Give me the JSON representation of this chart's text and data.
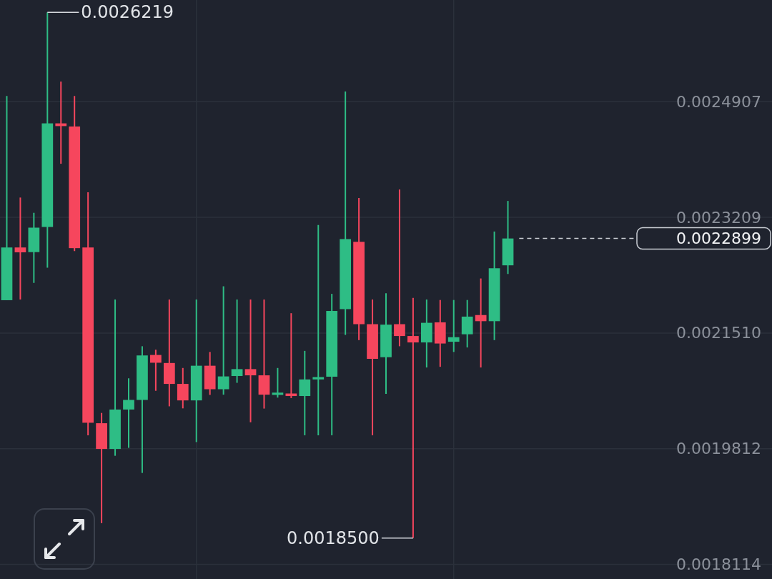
{
  "chart_data": {
    "type": "candlestick",
    "categories": [
      null,
      null,
      null,
      null,
      null,
      null,
      null,
      null,
      null,
      null,
      null,
      null,
      null,
      null,
      null,
      null,
      null,
      null,
      null,
      null,
      null,
      null,
      null,
      null,
      null,
      null,
      null,
      null,
      null,
      null,
      null,
      null,
      null,
      null,
      null,
      null,
      null,
      null,
      null,
      null,
      null,
      null,
      null,
      null,
      null,
      null,
      null,
      null,
      null,
      null,
      null,
      null,
      null,
      null,
      null,
      null,
      null
    ],
    "ohlc": [
      [
        0.0021993,
        0.0024991,
        0.0021993,
        0.0022767
      ],
      [
        0.0022767,
        0.00235,
        0.0022003,
        0.0022696
      ],
      [
        0.0022699,
        0.0023276,
        0.0022247,
        0.0023058
      ],
      [
        0.0023068,
        0.0026219,
        0.002247,
        0.0024589
      ],
      [
        0.0024589,
        0.0025202,
        0.0023996,
        0.0024549
      ],
      [
        0.0024543,
        0.0024991,
        0.0022714,
        0.0022757
      ],
      [
        0.0022767,
        0.0023578,
        0.002001,
        0.0020194
      ],
      [
        0.0020187,
        0.0020338,
        0.001872,
        0.0019809
      ],
      [
        0.0019809,
        0.0022003,
        0.0019709,
        0.0020388
      ],
      [
        0.0020388,
        0.0020847,
        0.0019825,
        0.0020529
      ],
      [
        0.0020529,
        0.0021317,
        0.0019457,
        0.0021182
      ],
      [
        0.0021189,
        0.0021266,
        0.0020663,
        0.0021075
      ],
      [
        0.0021071,
        0.0022003,
        0.0020435,
        0.0020764
      ],
      [
        0.0020764,
        0.0020998,
        0.0020405,
        0.0020522
      ],
      [
        0.0020522,
        0.0022003,
        0.001991,
        0.0021031
      ],
      [
        0.0021031,
        0.0021233,
        0.0020603,
        0.0020686
      ],
      [
        0.0020686,
        0.0022197,
        0.0020606,
        0.0020874
      ],
      [
        0.002088,
        0.0022003,
        0.002078,
        0.0020981
      ],
      [
        0.0020981,
        0.0022003,
        0.0020201,
        0.002089
      ],
      [
        0.002089,
        0.0022003,
        0.0020402,
        0.0020606
      ],
      [
        0.0020603,
        0.0020998,
        0.0020563,
        0.0020636
      ],
      [
        0.0020623,
        0.0021802,
        0.0020556,
        0.0020586
      ],
      [
        0.0020586,
        0.0021249,
        0.002001,
        0.002083
      ],
      [
        0.002083,
        0.0023098,
        0.002001,
        0.0020864
      ],
      [
        0.002087,
        0.0022086,
        0.002001,
        0.0021835
      ],
      [
        0.0021862,
        0.0025058,
        0.0021483,
        0.002289
      ],
      [
        0.002285,
        0.0023493,
        0.0021407,
        0.0021641
      ],
      [
        0.0021641,
        0.0022003,
        0.002001,
        0.0021132
      ],
      [
        0.0021156,
        0.0022096,
        0.0020619,
        0.0021634
      ],
      [
        0.0021641,
        0.0023618,
        0.0021317,
        0.0021467
      ],
      [
        0.0021467,
        0.0022026,
        0.00185,
        0.0021373
      ],
      [
        0.0021373,
        0.0022003,
        0.0021005,
        0.0021661
      ],
      [
        0.0021668,
        0.0021996,
        0.0021015,
        0.0021357
      ],
      [
        0.0021383,
        0.0021996,
        0.0021233,
        0.002145
      ],
      [
        0.0021493,
        0.0021996,
        0.0021299,
        0.0021752
      ],
      [
        0.0021775,
        0.0022312,
        0.0021005,
        0.0021685
      ],
      [
        0.0021685,
        0.0023001,
        0.0021407,
        0.0022462
      ],
      [
        0.0022505,
        0.002345,
        0.0022378,
        0.0022899
      ],
      null,
      null,
      null,
      null,
      null,
      null,
      null,
      null,
      null,
      null,
      null,
      null,
      null,
      null,
      null,
      null,
      null,
      null,
      null
    ],
    "colors": [
      "#2ebd85",
      "#f6465d",
      "#2ebd85",
      "#2ebd85",
      "#f6465d",
      "#f6465d",
      "#f6465d",
      "#f6465d",
      "#2ebd85",
      "#2ebd85",
      "#2ebd85",
      "#f6465d",
      "#f6465d",
      "#f6465d",
      "#2ebd85",
      "#f6465d",
      "#2ebd85",
      "#2ebd85",
      "#f6465d",
      "#f6465d",
      "#2ebd85",
      "#f6465d",
      "#2ebd85",
      "#2ebd85",
      "#2ebd85",
      "#2ebd85",
      "#f6465d",
      "#f6465d",
      "#2ebd85",
      "#f6465d",
      "#f6465d",
      "#2ebd85",
      "#f6465d",
      "#2ebd85",
      "#2ebd85",
      "#f6465d",
      "#2ebd85",
      "#2ebd85",
      null,
      null,
      null,
      null,
      null,
      null,
      null,
      null,
      null,
      null,
      null,
      null,
      null,
      null,
      null,
      null,
      null,
      null,
      null
    ],
    "ylim": [
      0.00179,
      0.00264
    ],
    "yticks": [
      0.0018114,
      0.0019812,
      {
        "value": 0.002151,
        "label": "0.0021510"
      },
      0.0023209,
      0.0024907
    ],
    "grid": true,
    "tick_labels": "y",
    "ref_lines": [
      {
        "axis": "y",
        "value": 0.0022899,
        "label": "0.0022899",
        "color": "#c9cdd4",
        "line_style": "dashed"
      }
    ],
    "annotations": [
      "0.0026219",
      "0.0018500"
    ]
  }
}
